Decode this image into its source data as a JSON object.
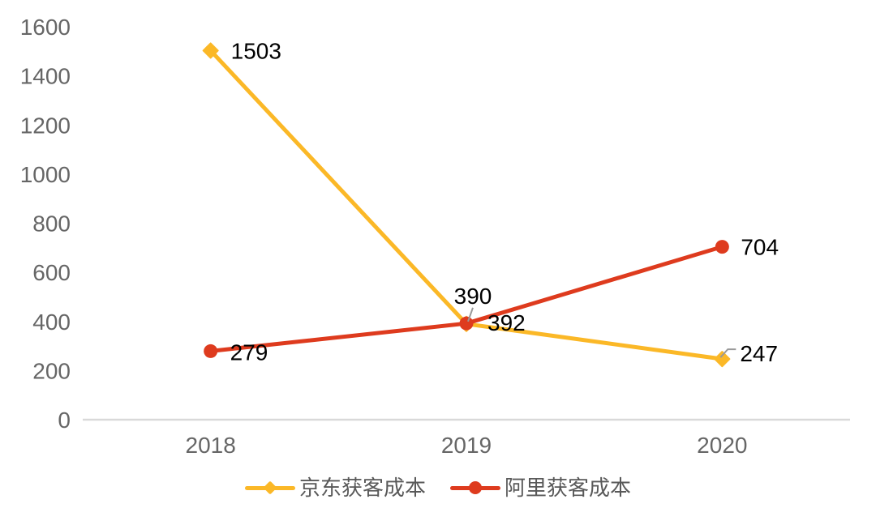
{
  "chart_data": {
    "type": "line",
    "title": "",
    "categories": [
      "2018",
      "2019",
      "2020"
    ],
    "series": [
      {
        "name": "京东获客成本",
        "values": [
          1503,
          390,
          247
        ],
        "color": "#FBB827",
        "marker": "diamond"
      },
      {
        "name": "阿里获客成本",
        "values": [
          279,
          392,
          704
        ],
        "color": "#DE3B1E",
        "marker": "circle"
      }
    ],
    "data_labels": [
      [
        "1503",
        "390",
        "247"
      ],
      [
        "279",
        "392",
        "704"
      ]
    ],
    "ylim": [
      0,
      1600
    ],
    "yticks": [
      0,
      200,
      400,
      600,
      800,
      1000,
      1200,
      1400,
      1600
    ],
    "xlabel": "",
    "ylabel": "",
    "grid": false,
    "legend_position": "bottom"
  },
  "styles": {
    "background": "#FFFFFF",
    "axis_text_color": "#666666",
    "data_label_color": "#000000",
    "axis_line_color": "#D9D9D9",
    "leader_line_color": "#999999",
    "legend_text_color": "#595959"
  }
}
